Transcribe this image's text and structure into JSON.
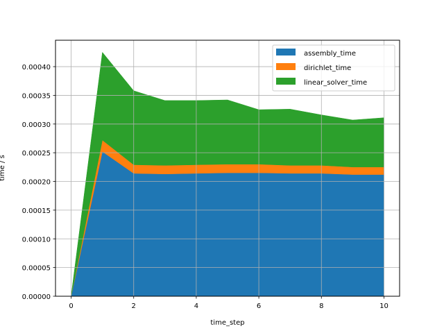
{
  "chart_data": {
    "type": "area",
    "stacked": true,
    "title": "",
    "xlabel": "time_step",
    "ylabel": "time / s",
    "x": [
      0,
      1,
      2,
      3,
      4,
      5,
      6,
      7,
      8,
      9,
      10
    ],
    "series": [
      {
        "name": "assembly_time",
        "color": "#1f77b4",
        "values": [
          0.0,
          0.000252,
          0.000214,
          0.000213,
          0.000214,
          0.000215,
          0.000215,
          0.000214,
          0.000214,
          0.000212,
          0.000212
        ]
      },
      {
        "name": "dirichlet_time",
        "color": "#ff7f0e",
        "values": [
          0.0,
          2e-05,
          1.5e-05,
          1.5e-05,
          1.5e-05,
          1.5e-05,
          1.5e-05,
          1.4e-05,
          1.4e-05,
          1.3e-05,
          1.3e-05
        ]
      },
      {
        "name": "linear_solver_time",
        "color": "#2ca02c",
        "values": [
          0.0,
          0.000153,
          0.000129,
          0.000113,
          0.000112,
          0.000112,
          9.5e-05,
          9.8e-05,
          8.8e-05,
          8.2e-05,
          8.6e-05
        ]
      }
    ],
    "xlim": [
      -0.5,
      10.5
    ],
    "ylim": [
      0.0,
      0.000446
    ],
    "xticks": [
      "0",
      "2",
      "4",
      "6",
      "8",
      "10"
    ],
    "yticks": [
      "0.00000",
      "0.00005",
      "0.00010",
      "0.00015",
      "0.00020",
      "0.00025",
      "0.00030",
      "0.00035",
      "0.00040"
    ],
    "grid": true,
    "legend_position": "upper right"
  },
  "legend": {
    "items": [
      {
        "label": "assembly_time",
        "color": "#1f77b4"
      },
      {
        "label": "dirichlet_time",
        "color": "#ff7f0e"
      },
      {
        "label": "linear_solver_time",
        "color": "#2ca02c"
      }
    ]
  },
  "axes": {
    "xlabel": "time_step",
    "ylabel": "time / s"
  }
}
